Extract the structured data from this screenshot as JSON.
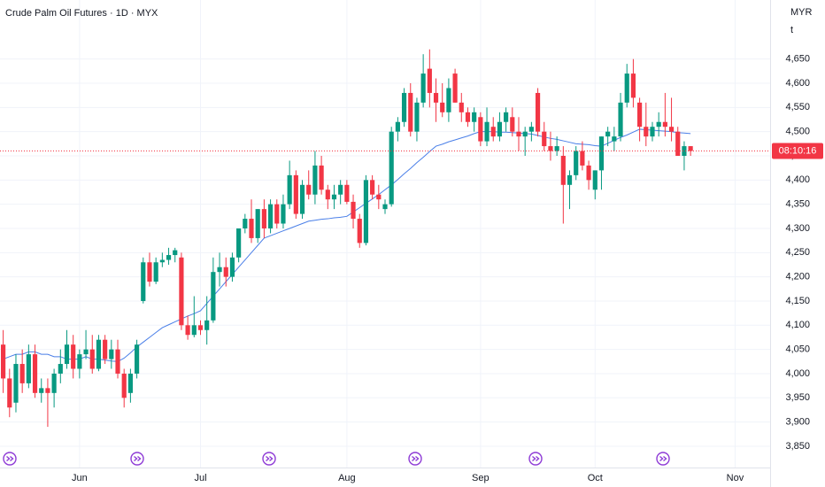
{
  "chart_data": {
    "type": "candlestick",
    "title": "Crude Palm Oil Futures · 1D · MYX",
    "currency": "MYR",
    "unit": "t",
    "countdown": "08:10:16",
    "up_color": "#089981",
    "down_color": "#f23645",
    "grid": true,
    "ylim": [
      3806,
      4772
    ],
    "yticks": [
      {
        "value": 3850,
        "label": "3,850"
      },
      {
        "value": 3900,
        "label": "3,900"
      },
      {
        "value": 3950,
        "label": "3,950"
      },
      {
        "value": 4000,
        "label": "4,000"
      },
      {
        "value": 4050,
        "label": "4,050"
      },
      {
        "value": 4100,
        "label": "4,100"
      },
      {
        "value": 4150,
        "label": "4,150"
      },
      {
        "value": 4200,
        "label": "4,200"
      },
      {
        "value": 4250,
        "label": "4,250"
      },
      {
        "value": 4300,
        "label": "4,300"
      },
      {
        "value": 4350,
        "label": "4,350"
      },
      {
        "value": 4400,
        "label": "4,400"
      },
      {
        "value": 4450,
        "label": "4,450"
      },
      {
        "value": 4500,
        "label": "4,500"
      },
      {
        "value": 4550,
        "label": "4,550"
      },
      {
        "value": 4600,
        "label": "4,600"
      },
      {
        "value": 4650,
        "label": "4,650"
      }
    ],
    "categories": [
      null,
      null,
      null,
      null,
      null,
      null,
      null,
      null,
      null,
      null,
      null,
      null,
      "Jun",
      null,
      null,
      null,
      null,
      null,
      null,
      null,
      null,
      null,
      null,
      null,
      null,
      null,
      null,
      null,
      null,
      null,
      null,
      "Jul",
      null,
      null,
      null,
      null,
      null,
      null,
      null,
      null,
      null,
      null,
      null,
      null,
      null,
      null,
      null,
      null,
      null,
      null,
      null,
      null,
      null,
      null,
      "Aug",
      null,
      null,
      null,
      null,
      null,
      null,
      null,
      null,
      null,
      null,
      null,
      null,
      null,
      null,
      null,
      null,
      null,
      null,
      null,
      null,
      "Sep",
      null,
      null,
      null,
      null,
      null,
      null,
      null,
      null,
      null,
      null,
      null,
      null,
      null,
      null,
      null,
      null,
      null,
      "Oct",
      null,
      null,
      null,
      null,
      null,
      null,
      null,
      null,
      null,
      null,
      null,
      null,
      null,
      null,
      null,
      null,
      null,
      null,
      null,
      null,
      null,
      "Nov",
      null,
      null,
      null,
      null,
      null
    ],
    "open": [
      4060,
      3990,
      3940,
      4020,
      3980,
      4040,
      3960,
      3970,
      3960,
      4000,
      4020,
      4060,
      4010,
      4040,
      4050,
      4010,
      4070,
      4030,
      4050,
      4000,
      3960,
      4000,
      4150,
      4230,
      4190,
      4230,
      4235,
      4245,
      4240,
      4100,
      4080,
      4100,
      4090,
      4110,
      4210,
      4220,
      4200,
      4240,
      4300,
      4320,
      4280,
      4340,
      4300,
      4350,
      4310,
      4350,
      4410,
      4330,
      4390,
      4370,
      4430,
      4380,
      4360,
      4370,
      4390,
      4355,
      4320,
      4270,
      4400,
      4370,
      4340,
      4350,
      4500,
      4520,
      4580,
      4500,
      4560,
      4630,
      4580,
      4560,
      4540,
      4620,
      4560,
      4540,
      4520,
      4530,
      4480,
      4510,
      4490,
      4520,
      4530,
      4500,
      4490,
      4500,
      4580,
      4500,
      4470,
      4460,
      4450,
      4390,
      4410,
      4460,
      4430,
      4380,
      4420,
      4490,
      4480,
      4490,
      4560,
      4620,
      4560,
      4510,
      4490,
      4510,
      4520,
      4510,
      4500,
      4450,
      4470,
      null,
      null,
      null,
      null,
      null,
      null,
      null,
      null,
      null,
      null,
      null,
      null
    ],
    "high": [
      4090,
      4010,
      4040,
      4050,
      4060,
      4060,
      3990,
      3990,
      4010,
      4050,
      4090,
      4080,
      4050,
      4090,
      4080,
      4080,
      4080,
      4070,
      4070,
      4010,
      4010,
      4070,
      4240,
      4250,
      4240,
      4250,
      4260,
      4260,
      4250,
      4120,
      4160,
      4110,
      4160,
      4240,
      4250,
      4240,
      4250,
      4300,
      4330,
      4360,
      4340,
      4360,
      4360,
      4360,
      4370,
      4440,
      4420,
      4400,
      4420,
      4460,
      4450,
      4390,
      4390,
      4400,
      4400,
      4370,
      4330,
      4410,
      4410,
      4390,
      4360,
      4510,
      4530,
      4590,
      4600,
      4570,
      4660,
      4670,
      4610,
      4600,
      4610,
      4630,
      4580,
      4550,
      4550,
      4540,
      4550,
      4530,
      4540,
      4550,
      4550,
      4530,
      4510,
      4520,
      4590,
      4520,
      4500,
      4490,
      4470,
      4420,
      4470,
      4480,
      4440,
      4420,
      4490,
      4510,
      4510,
      4580,
      4640,
      4650,
      4570,
      4560,
      4520,
      4540,
      4580,
      4570,
      4510,
      4480,
      4470,
      null,
      null,
      null,
      null,
      null,
      null,
      null,
      null,
      null,
      null,
      null,
      null
    ],
    "low": [
      3960,
      3910,
      3920,
      3960,
      3970,
      3950,
      3940,
      3890,
      3930,
      3980,
      4010,
      3990,
      3990,
      4030,
      4000,
      4005,
      4020,
      4010,
      3990,
      3930,
      3940,
      3990,
      4145,
      4180,
      4185,
      4220,
      4225,
      4230,
      4090,
      4070,
      4075,
      4080,
      4060,
      4105,
      4180,
      4180,
      4190,
      4230,
      4290,
      4270,
      4270,
      4280,
      4290,
      4300,
      4300,
      4340,
      4320,
      4320,
      4360,
      4350,
      4370,
      4340,
      4340,
      4350,
      4350,
      4300,
      4260,
      4265,
      4360,
      4340,
      4330,
      4345,
      4480,
      4510,
      4490,
      4480,
      4550,
      4550,
      4520,
      4530,
      4520,
      4560,
      4520,
      4510,
      4500,
      4470,
      4470,
      4480,
      4480,
      4500,
      4490,
      4460,
      4450,
      4480,
      4490,
      4460,
      4440,
      4450,
      4310,
      4340,
      4400,
      4420,
      4380,
      4360,
      4380,
      4470,
      4460,
      4480,
      4550,
      4550,
      4480,
      4470,
      4480,
      4490,
      4490,
      4480,
      4450,
      4420,
      4450,
      null,
      null,
      null,
      null,
      null,
      null,
      null,
      null,
      null,
      null,
      null,
      null
    ],
    "close": [
      3990,
      3930,
      4020,
      3980,
      4040,
      3960,
      3970,
      3960,
      4000,
      4020,
      4060,
      4010,
      4040,
      4050,
      4010,
      4070,
      4030,
      4050,
      4000,
      3950,
      4000,
      4060,
      4230,
      4190,
      4230,
      4235,
      4245,
      4255,
      4100,
      4080,
      4100,
      4090,
      4110,
      4210,
      4220,
      4200,
      4240,
      4300,
      4320,
      4280,
      4340,
      4300,
      4350,
      4310,
      4350,
      4410,
      4330,
      4390,
      4370,
      4430,
      4380,
      4360,
      4370,
      4390,
      4355,
      4320,
      4270,
      4400,
      4370,
      4360,
      4350,
      4500,
      4520,
      4580,
      4500,
      4560,
      4620,
      4580,
      4560,
      4540,
      4590,
      4560,
      4540,
      4520,
      4540,
      4480,
      4520,
      4490,
      4520,
      4540,
      4500,
      4490,
      4500,
      4510,
      4500,
      4470,
      4460,
      4470,
      4390,
      4410,
      4460,
      4430,
      4400,
      4420,
      4490,
      4500,
      4490,
      4560,
      4620,
      4570,
      4510,
      4490,
      4510,
      4520,
      4510,
      4500,
      4450,
      4470,
      4460,
      null,
      null,
      null,
      null,
      null,
      null,
      null,
      null,
      null,
      null,
      null,
      null
    ],
    "moving_average": {
      "color": "#4a7fe8",
      "values": [
        4030,
        4035,
        4040,
        4040,
        4045,
        4045,
        4040,
        4040,
        4035,
        4035,
        4030,
        4030,
        4030,
        4035,
        4030,
        4030,
        4028,
        4026,
        4025,
        4032,
        4043,
        4055,
        4065,
        4075,
        4085,
        4095,
        4101,
        4107,
        4113,
        4119,
        4124,
        4130,
        4145,
        4160,
        4175,
        4190,
        4205,
        4220,
        4235,
        4250,
        4265,
        4280,
        4285,
        4290,
        4295,
        4300,
        4305,
        4310,
        4315,
        4317,
        4319,
        4320,
        4322,
        4323,
        4325,
        4334,
        4343,
        4352,
        4361,
        4370,
        4380,
        4390,
        4401,
        4413,
        4424,
        4436,
        4447,
        4459,
        4470,
        4474,
        4479,
        4483,
        4487,
        4491,
        4496,
        4500,
        4500,
        4500,
        4499,
        4499,
        4498,
        4497,
        4496,
        4495,
        4492,
        4489,
        4486,
        4484,
        4481,
        4478,
        4475,
        4474,
        4473,
        4471,
        4470,
        4476,
        4482,
        4488,
        4493,
        4499,
        4505,
        4504,
        4503,
        4502,
        4501,
        4500,
        4498,
        4497,
        4496,
        null,
        null,
        null,
        null,
        null,
        null,
        null,
        null,
        null,
        null,
        null,
        null
      ]
    }
  }
}
